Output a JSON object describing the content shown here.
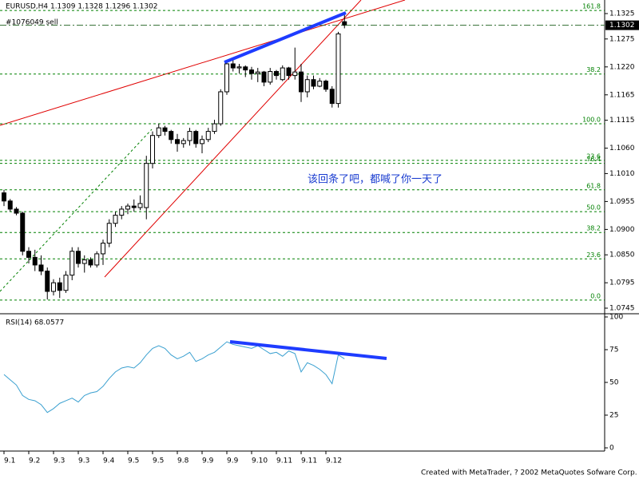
{
  "chart_data": [
    {
      "type": "candlestick",
      "title": "EURUSD,H4  1.1309 1.1328 1.1296 1.1302",
      "open": [
        1.0972,
        1.0956,
        1.094,
        1.0932,
        1.0857,
        1.0845,
        1.083,
        1.0818,
        1.0778,
        1.0795,
        1.078,
        1.081,
        1.0857,
        1.0833,
        1.084,
        1.083,
        1.0852,
        1.0873,
        1.0912,
        1.0928,
        1.094,
        1.0946,
        1.0943,
        1.0943,
        1.103,
        1.1085,
        1.11,
        1.1093,
        1.1077,
        1.1069,
        1.1075,
        1.1093,
        1.1069,
        1.1077,
        1.1093,
        1.1108,
        1.1171,
        1.1226,
        1.1218,
        1.122,
        1.1214,
        1.1207,
        1.121,
        1.119,
        1.1211,
        1.1195,
        1.1218,
        1.1203,
        1.121,
        1.1171,
        1.1195,
        1.1182,
        1.1192,
        1.1176,
        1.1148,
        1.1309
      ],
      "high": [
        1.0978,
        1.096,
        1.0944,
        1.0935,
        1.0865,
        1.086,
        1.0849,
        1.0825,
        1.0802,
        1.0805,
        1.0818,
        1.0865,
        1.0865,
        1.0849,
        1.0845,
        1.0857,
        1.088,
        1.092,
        1.0935,
        1.0946,
        1.0951,
        1.0959,
        1.0967,
        1.1045,
        1.1093,
        1.1108,
        1.1104,
        1.1096,
        1.1088,
        1.108,
        1.11,
        1.1096,
        1.1085,
        1.11,
        1.1116,
        1.1176,
        1.1229,
        1.1234,
        1.1226,
        1.1223,
        1.122,
        1.1218,
        1.1212,
        1.1218,
        1.1214,
        1.1223,
        1.122,
        1.1258,
        1.1226,
        1.1203,
        1.1203,
        1.1198,
        1.1195,
        1.1182,
        1.1289,
        1.1328
      ],
      "low": [
        1.0946,
        1.0935,
        1.0928,
        1.0849,
        1.0833,
        1.0818,
        1.081,
        1.0762,
        1.077,
        1.0765,
        1.0775,
        1.08,
        1.0825,
        1.0815,
        1.0825,
        1.0825,
        1.083,
        1.0865,
        1.0905,
        1.092,
        1.093,
        1.0935,
        1.0938,
        1.092,
        1.102,
        1.108,
        1.1085,
        1.1069,
        1.1053,
        1.1061,
        1.1065,
        1.1061,
        1.105,
        1.1072,
        1.1088,
        1.1104,
        1.1165,
        1.1211,
        1.1207,
        1.12,
        1.1195,
        1.119,
        1.1182,
        1.1185,
        1.1195,
        1.1192,
        1.1195,
        1.1195,
        1.1151,
        1.116,
        1.1176,
        1.118,
        1.1171,
        1.114,
        1.114,
        1.1296
      ],
      "close": [
        1.0956,
        1.094,
        1.0932,
        1.0857,
        1.0845,
        1.083,
        1.0818,
        1.0778,
        1.0795,
        1.078,
        1.081,
        1.0857,
        1.0833,
        1.084,
        1.083,
        1.0852,
        1.0873,
        1.0912,
        1.0928,
        1.094,
        1.0946,
        1.0943,
        1.0951,
        1.103,
        1.1085,
        1.11,
        1.1093,
        1.1077,
        1.1069,
        1.1075,
        1.1093,
        1.1069,
        1.1077,
        1.1093,
        1.1108,
        1.1171,
        1.1226,
        1.1218,
        1.122,
        1.1214,
        1.1207,
        1.121,
        1.119,
        1.1211,
        1.1203,
        1.1218,
        1.1203,
        1.121,
        1.1171,
        1.1195,
        1.1182,
        1.1192,
        1.1176,
        1.1148,
        1.1285,
        1.1302
      ],
      "xticks": [
        {
          "value": 0,
          "label": "9.1"
        },
        {
          "value": 4,
          "label": "9.2"
        },
        {
          "value": 8,
          "label": "9.3"
        },
        {
          "value": 12,
          "label": "9.3"
        },
        {
          "value": 16,
          "label": "9.4"
        },
        {
          "value": 20,
          "label": "9.5"
        },
        {
          "value": 24,
          "label": "9.5"
        },
        {
          "value": 28,
          "label": "9.8"
        },
        {
          "value": 32,
          "label": "9.9"
        },
        {
          "value": 36,
          "label": "9.9"
        },
        {
          "value": 40,
          "label": "9.10"
        },
        {
          "value": 44,
          "label": "9.11"
        },
        {
          "value": 48,
          "label": "9.11"
        },
        {
          "value": 52,
          "label": "9.12"
        }
      ],
      "ylim": [
        1.0745,
        1.1325
      ],
      "yticks": [
        1.1325,
        1.1275,
        {
          "value": 1.122,
          "label": "1.1220"
        },
        1.1165,
        1.1115,
        {
          "value": 1.106,
          "label": "1.1060"
        },
        {
          "value": 1.101,
          "label": "1.1010"
        },
        1.0955,
        {
          "value": 1.09,
          "label": "1.0900"
        },
        {
          "value": 1.085,
          "label": "1.0850"
        },
        1.0795,
        1.0745
      ],
      "fib_levels": [
        {
          "label": "161.8",
          "price": 1.1331
        },
        {
          "label": "38.2",
          "price": 1.1206
        },
        {
          "label": "100.0",
          "price": 1.1108
        },
        {
          "label": "23.6",
          "price": 1.1036
        },
        {
          "label": "76.4",
          "price": 1.103
        },
        {
          "label": "61.8",
          "price": 1.0978
        },
        {
          "label": "50.0",
          "price": 1.0935
        },
        {
          "label": "38.2",
          "price": 1.0894
        },
        {
          "label": "23.6",
          "price": 1.0842
        },
        {
          "label": "0.0",
          "price": 1.0761
        }
      ],
      "annotation": "该回条了吧，都喊了你一天了"
    },
    {
      "type": "line",
      "title": "RSI(14)  68.0577",
      "color": "#3aa0d0",
      "values": [
        56,
        52,
        48,
        40,
        37,
        36,
        33,
        27,
        30,
        34,
        36,
        38,
        35,
        40,
        42,
        43,
        47,
        53,
        58,
        61,
        62,
        61,
        65,
        71,
        76,
        78,
        76,
        71,
        68,
        70,
        73,
        66,
        68,
        71,
        73,
        77,
        81,
        79,
        78,
        77,
        76,
        78,
        75,
        72,
        73,
        70,
        74,
        72,
        58,
        65,
        63,
        60,
        56,
        49,
        71,
        68
      ],
      "ylim": [
        0,
        100
      ],
      "yticks": [
        100,
        75,
        50,
        25,
        0
      ]
    }
  ],
  "order_label": "#1076049 sell",
  "footer": "Created with MetaTrader, ? 2002 MetaQuotes Sofware Corp."
}
